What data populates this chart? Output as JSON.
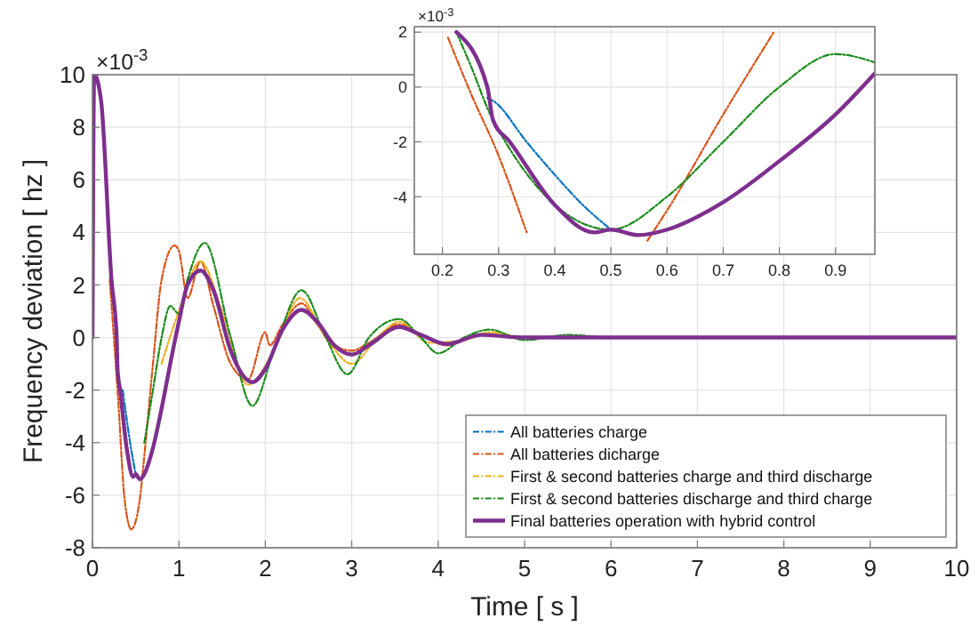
{
  "chart_data": [
    {
      "type": "line",
      "xlabel": "Time [ s ]",
      "ylabel": "Frequency deviation [ hz ]",
      "annotations": [
        "×10$^{-3}$"
      ],
      "xlim": [
        0,
        10
      ],
      "ylim": [
        -8,
        10
      ],
      "xticks": [
        0,
        1,
        2,
        3,
        4,
        5,
        6,
        7,
        8,
        9,
        10
      ],
      "yticks": [
        -8,
        -6,
        -4,
        -2,
        0,
        2,
        4,
        6,
        8,
        10
      ],
      "grid": true,
      "legend": "bottom right",
      "series": [
        {
          "name": "All batteries charge",
          "color": "#0072bd",
          "line_style": "dashed",
          "x": [
            0.35,
            0.4,
            0.45,
            0.5
          ],
          "values": [
            -2,
            -3.2,
            -4.3,
            -5.2
          ]
        },
        {
          "name": "All batteries dicharge",
          "color": "#d95319",
          "line_style": "dashed",
          "x": [
            0.2,
            0.3,
            0.37,
            0.45,
            0.55,
            0.6,
            0.7,
            0.8,
            0.95,
            1.0,
            1.1,
            1.25,
            1.4,
            1.6,
            1.8,
            2.0,
            2.05,
            2.2,
            2.42,
            2.6,
            2.8,
            3.0,
            3.2,
            3.55,
            3.8,
            4.1,
            4.5,
            5,
            6,
            10
          ],
          "values": [
            2.2,
            -2.5,
            -6.1,
            -7.3,
            -6.1,
            -4.5,
            -1,
            2.2,
            3.5,
            3.3,
            1.5,
            2.9,
            1.2,
            -1,
            -1.6,
            0.2,
            -0.3,
            0.5,
            1.3,
            0.5,
            -0.3,
            -0.5,
            -0.2,
            0.5,
            0.1,
            -0.3,
            0.1,
            0,
            0,
            0
          ]
        },
        {
          "name": "First & second batteries charge and third discharge",
          "color": "#edb120",
          "line_style": "dashed",
          "x": [
            0.8,
            1.0,
            1.25,
            1.5,
            1.8,
            2.1,
            2.4,
            2.7,
            3.0,
            3.3,
            3.55,
            3.9,
            4.3,
            4.6,
            5,
            6,
            10
          ],
          "values": [
            -1,
            1,
            2.9,
            1,
            -1.8,
            -0.5,
            1.5,
            0,
            -1,
            0,
            0.6,
            -0.2,
            -0.1,
            0.2,
            0,
            0,
            0
          ]
        },
        {
          "name": "First & second batteries discharge and third charge",
          "color": "#1a8a1a",
          "line_style": "dashed",
          "x": [
            0.6,
            0.7,
            0.8,
            0.9,
            1.0,
            1.1,
            1.3,
            1.6,
            1.85,
            2.1,
            2.42,
            2.7,
            2.95,
            3.2,
            3.55,
            3.8,
            4.0,
            4.3,
            4.6,
            5,
            5.5,
            6,
            10
          ],
          "values": [
            -4,
            -2,
            0,
            1.2,
            0.9,
            2.2,
            3.6,
            0,
            -2.6,
            -0.5,
            1.8,
            0,
            -1.4,
            0,
            0.7,
            0,
            -0.6,
            0,
            0.3,
            -0.1,
            0.1,
            0,
            0
          ]
        },
        {
          "name": "Final batteries operation with hybrid control",
          "color": "#7e2f8e",
          "line_style": "solid",
          "x": [
            0,
            0.02,
            0.1,
            0.22,
            0.28,
            0.29,
            0.32,
            0.4,
            0.47,
            0.5,
            0.55,
            0.6,
            0.7,
            0.8,
            0.9,
            1.0,
            1.1,
            1.25,
            1.4,
            1.6,
            1.85,
            2.0,
            2.2,
            2.42,
            2.6,
            2.8,
            3.0,
            3.2,
            3.55,
            3.8,
            4.1,
            4.5,
            5,
            6,
            10
          ],
          "values": [
            0,
            10,
            9,
            2.2,
            0,
            -1.2,
            -2,
            -4.3,
            -5.3,
            -5.2,
            -5.4,
            -5.2,
            -4.2,
            -2.7,
            -1,
            0.6,
            2.0,
            2.55,
            1.8,
            -0.5,
            -1.7,
            -1.2,
            0.3,
            1.05,
            0.6,
            -0.3,
            -0.65,
            -0.3,
            0.4,
            0.1,
            -0.25,
            0.1,
            0,
            0,
            0
          ]
        }
      ]
    },
    {
      "type": "line",
      "annotations": [
        "×10$^{-3}$"
      ],
      "xlim": [
        0.15,
        0.97
      ],
      "ylim": [
        -6.1,
        2.2
      ],
      "xticks": [
        0.2,
        0.3,
        0.4,
        0.5,
        0.6,
        0.7,
        0.8,
        0.9
      ],
      "yticks": [
        -4,
        -2,
        0,
        2
      ],
      "grid": true,
      "series": [
        {
          "color": "#0072bd",
          "line_style": "dashed",
          "x": [
            0.28,
            0.29,
            0.35,
            0.4,
            0.45,
            0.5
          ],
          "values": [
            -0.4,
            -0.5,
            -2,
            -3.2,
            -4.3,
            -5.2
          ]
        },
        {
          "color": "#d95319",
          "line_style": "dashed",
          "x": [
            0.21,
            0.25,
            0.3,
            0.35,
            0.45,
            0.565,
            0.6,
            0.7,
            0.79
          ],
          "values": [
            1.8,
            -0.2,
            -2.5,
            -5.3,
            null,
            -5.6,
            -4.5,
            -1,
            2.0
          ]
        },
        {
          "color": "#1a8a1a",
          "line_style": "dashed",
          "x": [
            0.225,
            0.25,
            0.29,
            0.5,
            0.6,
            0.7,
            0.8,
            0.9,
            0.97
          ],
          "values": [
            2.0,
            0.8,
            -1.2,
            -5.2,
            -4,
            -2,
            0,
            1.2,
            0.9
          ]
        },
        {
          "color": "#7e2f8e",
          "line_style": "solid",
          "x": [
            0.225,
            0.28,
            0.29,
            0.32,
            0.4,
            0.47,
            0.5,
            0.55,
            0.6,
            0.7,
            0.8,
            0.9,
            0.97
          ],
          "values": [
            2.0,
            0,
            -1.2,
            -2,
            -4.3,
            -5.3,
            -5.2,
            -5.4,
            -5.2,
            -4.2,
            -2.7,
            -1,
            0.5
          ]
        }
      ]
    }
  ]
}
